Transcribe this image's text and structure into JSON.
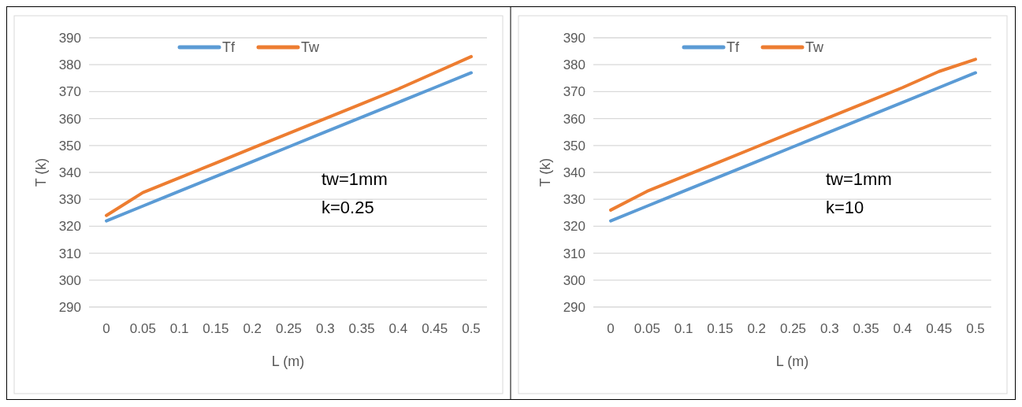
{
  "chart_data": [
    {
      "type": "line",
      "xlabel": "L (m)",
      "ylabel": "T (k)",
      "categories": [
        "0",
        "0.05",
        "0.1",
        "0.15",
        "0.2",
        "0.25",
        "0.3",
        "0.35",
        "0.4",
        "0.45",
        "0.5"
      ],
      "ylim": [
        290,
        390
      ],
      "yticks": [
        290,
        300,
        310,
        320,
        330,
        340,
        350,
        360,
        370,
        380,
        390
      ],
      "grid": "y",
      "legend": "top",
      "annotations": [
        "tw=1mm",
        "k=0.25"
      ],
      "series": [
        {
          "name": "Tf",
          "color": "#5b9bd5",
          "values": [
            322,
            327.5,
            333,
            338.5,
            344,
            349.5,
            355,
            360.5,
            366,
            371.5,
            377
          ]
        },
        {
          "name": "Tw",
          "color": "#ed7d31",
          "values": [
            324,
            332.5,
            338,
            343.5,
            349,
            354.5,
            360,
            365.5,
            371,
            377,
            383
          ]
        }
      ]
    },
    {
      "type": "line",
      "xlabel": "L (m)",
      "ylabel": "T (k)",
      "categories": [
        "0",
        "0.05",
        "0.1",
        "0.15",
        "0.2",
        "0.25",
        "0.3",
        "0.35",
        "0.4",
        "0.45",
        "0.5"
      ],
      "ylim": [
        290,
        390
      ],
      "yticks": [
        290,
        300,
        310,
        320,
        330,
        340,
        350,
        360,
        370,
        380,
        390
      ],
      "grid": "y",
      "legend": "top",
      "annotations": [
        "tw=1mm",
        "k=10"
      ],
      "series": [
        {
          "name": "Tf",
          "color": "#5b9bd5",
          "values": [
            322,
            327.5,
            333,
            338.5,
            344,
            349.5,
            355,
            360.5,
            366,
            371.5,
            377
          ]
        },
        {
          "name": "Tw",
          "color": "#ed7d31",
          "values": [
            326,
            333,
            338.5,
            344,
            349.5,
            355,
            360.5,
            366,
            371.5,
            377.5,
            382
          ]
        }
      ]
    }
  ]
}
